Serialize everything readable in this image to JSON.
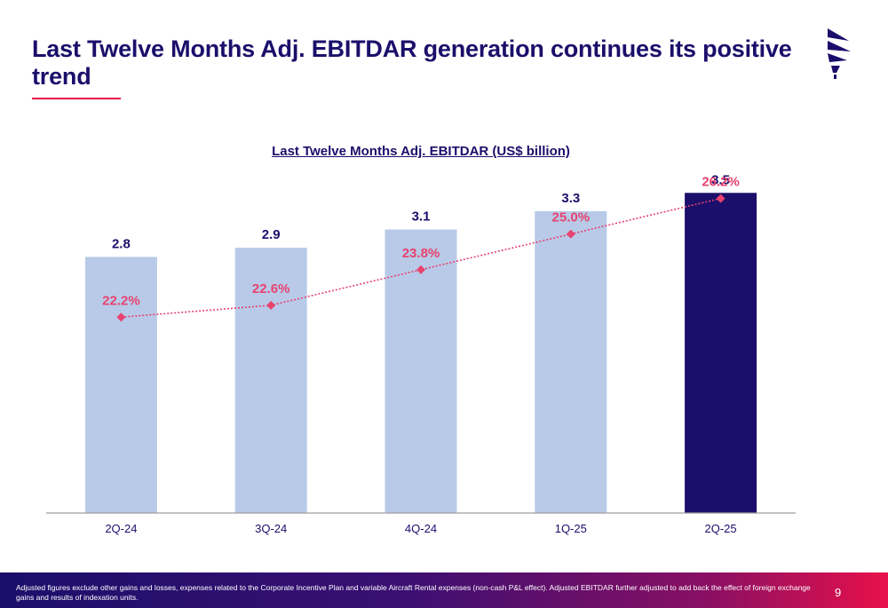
{
  "slide": {
    "title": "Last Twelve Months Adj. EBITDAR generation continues its positive trend",
    "footnote": "Adjusted figures exclude other gains and losses, expenses related to the Corporate Incentive Plan and variable Aircraft Rental expenses (non-cash P&L effect). Adjusted EBITDAR further adjusted to add back the effect of foreign exchange gains and results of indexation units.",
    "page_number": "9"
  },
  "logo": {
    "icon": "brand-logo-icon",
    "color": "#1b0f6b"
  },
  "chart_data": {
    "type": "bar",
    "title": "Last Twelve Months Adj. EBITDAR (US$ billion)",
    "xlabel": "",
    "ylabel": "",
    "categories": [
      "2Q-24",
      "3Q-24",
      "4Q-24",
      "1Q-25",
      "2Q-25"
    ],
    "series": [
      {
        "type": "bar",
        "values": [
          2.8,
          2.9,
          3.1,
          3.3,
          3.5
        ],
        "labels": [
          "2.8",
          "2.9",
          "3.1",
          "3.3",
          "3.5"
        ],
        "colors": [
          "#b8cae8",
          "#b8cae8",
          "#b8cae8",
          "#b8cae8",
          "#1b0f6b"
        ],
        "ylim": [
          0,
          4.25
        ]
      },
      {
        "type": "line",
        "values": [
          22.2,
          22.6,
          23.8,
          25.0,
          26.2
        ],
        "labels": [
          "22.2%",
          "22.6%",
          "23.8%",
          "25.0%",
          "26.2%"
        ],
        "color": "#e8426f",
        "style": "dotted",
        "marker": "diamond",
        "ylim": [
          15.6,
          28.7
        ]
      }
    ],
    "grid": false,
    "legend": "none"
  },
  "colors": {
    "title": "#1b0f6b",
    "accent": "#e8114b",
    "value_label": "#1b0f6b",
    "axis": "#9e9e9e",
    "tick_label": "#1b0f6b"
  }
}
